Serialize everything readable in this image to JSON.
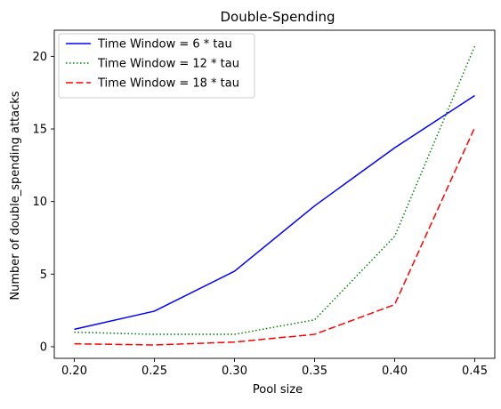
{
  "chart_data": {
    "type": "line",
    "title": "Double-Spending",
    "xlabel": "Pool size",
    "ylabel": "Number of double_spending attacks",
    "x": [
      0.2,
      0.25,
      0.3,
      0.35,
      0.4,
      0.45
    ],
    "x_tick_labels": [
      "0.20",
      "0.25",
      "0.30",
      "0.35",
      "0.40",
      "0.45"
    ],
    "y_ticks": [
      0,
      5,
      10,
      15,
      20
    ],
    "y_tick_labels": [
      "0",
      "5",
      "10",
      "15",
      "20"
    ],
    "xlim": [
      0.1875,
      0.4625
    ],
    "ylim": [
      -0.8,
      21.8
    ],
    "grid": false,
    "legend_position": "top-left",
    "series": [
      {
        "name": "Time Window = 6 * tau",
        "color": "#0000ff",
        "style": "solid",
        "values": [
          1.2,
          2.45,
          5.2,
          9.7,
          13.7,
          17.3
        ]
      },
      {
        "name": "Time Window = 12 * tau",
        "color": "#008000",
        "style": "dotted",
        "values": [
          1.0,
          0.85,
          0.85,
          1.85,
          7.6,
          20.7
        ]
      },
      {
        "name": "Time Window = 18 * tau",
        "color": "#ff0000",
        "style": "dashed",
        "values": [
          0.2,
          0.12,
          0.32,
          0.85,
          2.9,
          15.1
        ]
      }
    ]
  }
}
